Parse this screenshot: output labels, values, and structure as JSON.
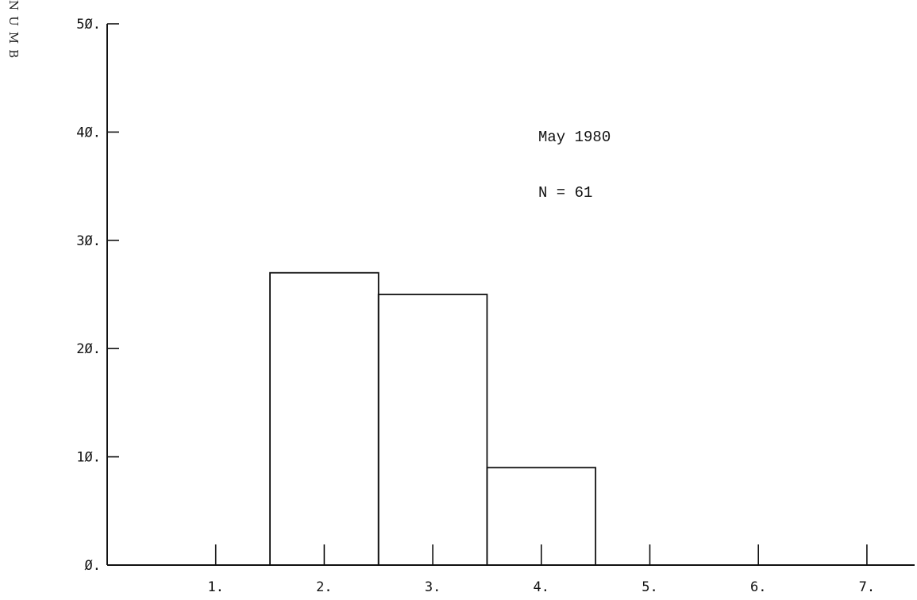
{
  "chart_data": {
    "type": "bar",
    "histogram": true,
    "y_axis_label_visible": "NUMB",
    "bins": [
      {
        "x_start": 1.5,
        "x_end": 2.5,
        "value": 27
      },
      {
        "x_start": 2.5,
        "x_end": 3.5,
        "value": 25
      },
      {
        "x_start": 3.5,
        "x_end": 4.5,
        "value": 9
      }
    ],
    "x_ticks": [
      1,
      2,
      3,
      4,
      5,
      6,
      7
    ],
    "x_tick_labels": [
      "1.",
      "2.",
      "3.",
      "4.",
      "5.",
      "6.",
      "7."
    ],
    "y_ticks": [
      0,
      10,
      20,
      30,
      40,
      50
    ],
    "y_tick_labels": [
      "Ø.",
      "1Ø.",
      "2Ø.",
      "3Ø.",
      "4Ø.",
      "5Ø."
    ],
    "xlim": [
      0,
      7.5
    ],
    "ylim": [
      0,
      50
    ],
    "annotations": [
      "May 1980",
      "N = 61"
    ],
    "grid": false
  }
}
